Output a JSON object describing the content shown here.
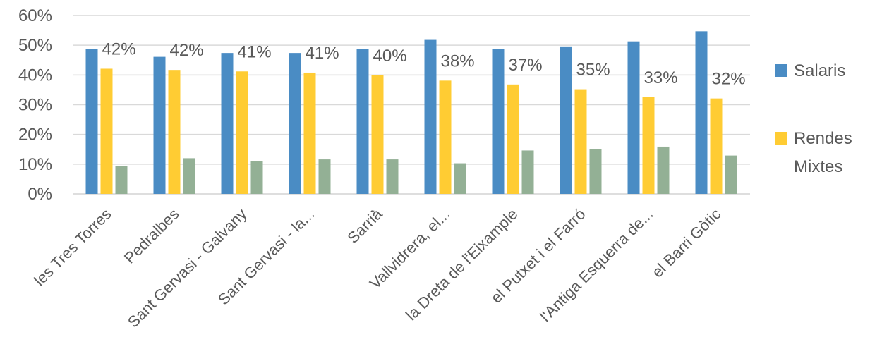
{
  "chart_data": {
    "type": "bar",
    "title": "",
    "xlabel": "",
    "ylabel": "",
    "ylim": [
      0,
      0.6
    ],
    "yticks": [
      "0%",
      "10%",
      "20%",
      "30%",
      "40%",
      "50%",
      "60%"
    ],
    "grid": true,
    "legend_position": "right",
    "categories": [
      "les Tres Torres",
      "Pedralbes",
      "Sant Gervasi - Galvany",
      "Sant Gervasi - la...",
      "Sarrià",
      "Vallvidrera, el...",
      "la Dreta de l'Eixample",
      "el Putxet i el Farró",
      "l'Antiga Esquerra de...",
      "el Barri Gòtic"
    ],
    "series": [
      {
        "name": "Salaris",
        "color": "#4A8CC4",
        "values": [
          0.487,
          0.461,
          0.474,
          0.474,
          0.487,
          0.518,
          0.487,
          0.496,
          0.513,
          0.547
        ]
      },
      {
        "name": "Rendes Mixtes",
        "color": "#FFCC33",
        "values": [
          0.421,
          0.417,
          0.412,
          0.408,
          0.399,
          0.381,
          0.368,
          0.352,
          0.325,
          0.321
        ],
        "data_labels": [
          "42%",
          "42%",
          "41%",
          "41%",
          "40%",
          "38%",
          "37%",
          "35%",
          "33%",
          "32%"
        ]
      },
      {
        "name": "",
        "color": "#93B095",
        "values": [
          0.094,
          0.12,
          0.111,
          0.116,
          0.116,
          0.103,
          0.146,
          0.151,
          0.159,
          0.129
        ]
      }
    ],
    "legend": [
      {
        "label_lines": [
          "Salaris"
        ],
        "color": "#4A8CC4"
      },
      {
        "label_lines": [
          "Rendes",
          "Mixtes"
        ],
        "color": "#FFCC33"
      }
    ]
  }
}
